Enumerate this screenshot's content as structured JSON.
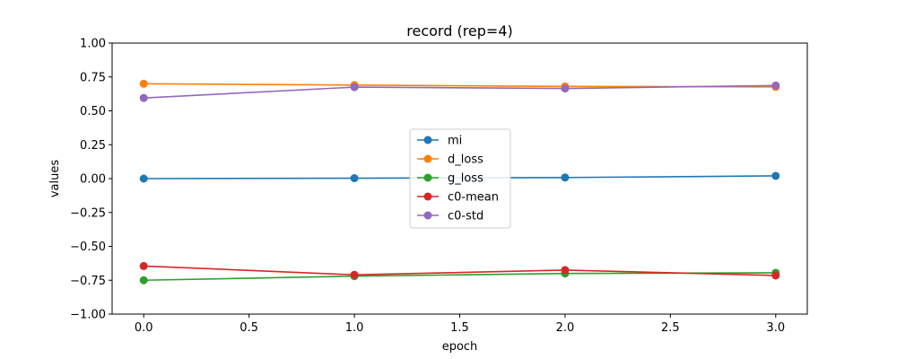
{
  "chart_data": {
    "type": "line",
    "title": "record (rep=4)",
    "xlabel": "epoch",
    "ylabel": "values",
    "x": [
      0.0,
      1.0,
      2.0,
      3.0
    ],
    "xlim": [
      -0.15,
      3.15
    ],
    "ylim": [
      -1.0,
      1.0
    ],
    "xticks": [
      0.0,
      0.5,
      1.0,
      1.5,
      2.0,
      2.5,
      3.0
    ],
    "xtick_labels": [
      "0.0",
      "0.5",
      "1.0",
      "1.5",
      "2.0",
      "2.5",
      "3.0"
    ],
    "yticks": [
      -1.0,
      -0.75,
      -0.5,
      -0.25,
      0.0,
      0.25,
      0.5,
      0.75,
      1.0
    ],
    "ytick_labels": [
      "−1.00",
      "−0.75",
      "−0.50",
      "−0.25",
      "0.00",
      "0.25",
      "0.50",
      "0.75",
      "1.00"
    ],
    "grid": false,
    "legend_position": "center",
    "series": [
      {
        "name": "mi",
        "color": "#1f77b4",
        "values": [
          0.0,
          0.003,
          0.008,
          0.02
        ]
      },
      {
        "name": "d_loss",
        "color": "#ff7f0e",
        "values": [
          0.7,
          0.69,
          0.68,
          0.677
        ]
      },
      {
        "name": "g_loss",
        "color": "#2ca02c",
        "values": [
          -0.75,
          -0.72,
          -0.7,
          -0.695
        ]
      },
      {
        "name": "c0-mean",
        "color": "#d62728",
        "values": [
          -0.645,
          -0.71,
          -0.675,
          -0.715
        ]
      },
      {
        "name": "c0-std",
        "color": "#9467bd",
        "values": [
          0.595,
          0.675,
          0.665,
          0.687
        ]
      }
    ]
  }
}
